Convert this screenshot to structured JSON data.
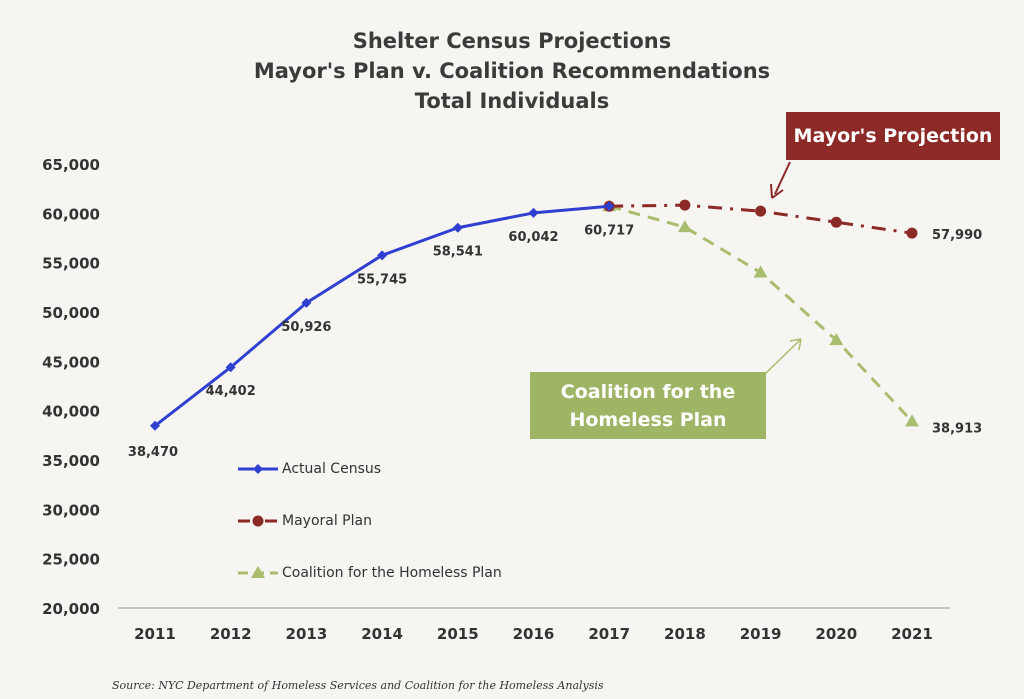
{
  "chart_data": {
    "type": "line",
    "title": [
      "Shelter Census Projections",
      "Mayor's Plan v. Coalition Recommendations",
      "Total Individuals"
    ],
    "x": [
      2011,
      2012,
      2013,
      2014,
      2015,
      2016,
      2017,
      2018,
      2019,
      2020,
      2021
    ],
    "x_tick_labels": [
      "2011",
      "2012",
      "2013",
      "2014",
      "2015",
      "2016",
      "2017",
      "2018",
      "2019",
      "2020",
      "2021"
    ],
    "y_tick_labels": [
      "20,000",
      "25,000",
      "30,000",
      "35,000",
      "40,000",
      "45,000",
      "50,000",
      "55,000",
      "60,000",
      "65,000"
    ],
    "ylim": [
      20000,
      65000
    ],
    "grid": false,
    "legend_position": "lower-left",
    "series": [
      {
        "name": "Actual Census",
        "color": "#2f3fd0",
        "marker": "diamond",
        "style": "solid",
        "x": [
          2011,
          2012,
          2013,
          2014,
          2015,
          2016,
          2017
        ],
        "values": [
          38470,
          44402,
          50926,
          55745,
          58541,
          60042,
          60717
        ],
        "labels": [
          "38,470",
          "44,402",
          "50,926",
          "55,745",
          "58,541",
          "60,042",
          "60,717"
        ]
      },
      {
        "name": "Mayoral Plan",
        "color": "#8c2a28",
        "marker": "circle",
        "style": "dashdot",
        "x": [
          2017,
          2018,
          2019,
          2020,
          2021
        ],
        "values": [
          60717,
          60830,
          60220,
          59100,
          57990
        ],
        "labels": [
          "",
          "",
          "",
          "",
          "57,990"
        ]
      },
      {
        "name": "Coalition for the Homeless Plan",
        "color": "#a9bd6e",
        "marker": "triangle",
        "style": "dashed",
        "x": [
          2017,
          2018,
          2019,
          2020,
          2021
        ],
        "values": [
          60717,
          58600,
          54000,
          47150,
          38913
        ],
        "labels": [
          "",
          "",
          "",
          "",
          "38,913"
        ]
      }
    ],
    "annotations": [
      "Mayor's Projection",
      "Coalition for the Homeless Plan"
    ]
  },
  "callouts": {
    "mayor": "Mayor's Projection",
    "coalition_line1": "Coalition for the",
    "coalition_line2": "Homeless Plan"
  },
  "source": "Source:  NYC Department of Homeless Services and Coalition for the Homeless Analysis"
}
